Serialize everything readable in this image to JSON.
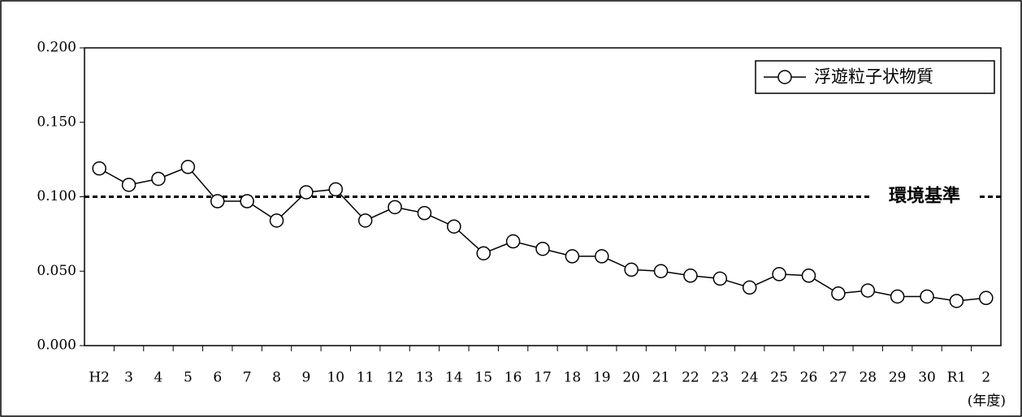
{
  "chart_data": {
    "type": "line",
    "categories": [
      "H2",
      "3",
      "4",
      "5",
      "6",
      "7",
      "8",
      "9",
      "10",
      "11",
      "12",
      "13",
      "14",
      "15",
      "16",
      "17",
      "18",
      "19",
      "20",
      "21",
      "22",
      "23",
      "24",
      "25",
      "26",
      "27",
      "28",
      "29",
      "30",
      "R1",
      "2"
    ],
    "series": [
      {
        "name": "浮遊粒子状物質",
        "color": "#000000",
        "values": [
          0.119,
          0.108,
          0.112,
          0.12,
          0.097,
          0.097,
          0.084,
          0.103,
          0.105,
          0.084,
          0.093,
          0.089,
          0.08,
          0.062,
          0.07,
          0.065,
          0.06,
          0.06,
          0.051,
          0.05,
          0.047,
          0.045,
          0.039,
          0.048,
          0.047,
          0.035,
          0.037,
          0.033,
          0.033,
          0.03,
          0.032
        ]
      }
    ],
    "ylim": [
      0,
      0.2
    ],
    "yticks": [
      {
        "value": 0,
        "label": "0.000"
      },
      {
        "value": 0.05,
        "label": "0.050"
      },
      {
        "value": 0.1,
        "label": "0.100"
      },
      {
        "value": 0.15,
        "label": "0.150"
      },
      {
        "value": 0.2,
        "label": "0.200"
      }
    ],
    "reference_line": {
      "value": 0.1,
      "label": "環境基準"
    },
    "x_unit": "(年度)",
    "legend": "top-right",
    "grid": false
  }
}
